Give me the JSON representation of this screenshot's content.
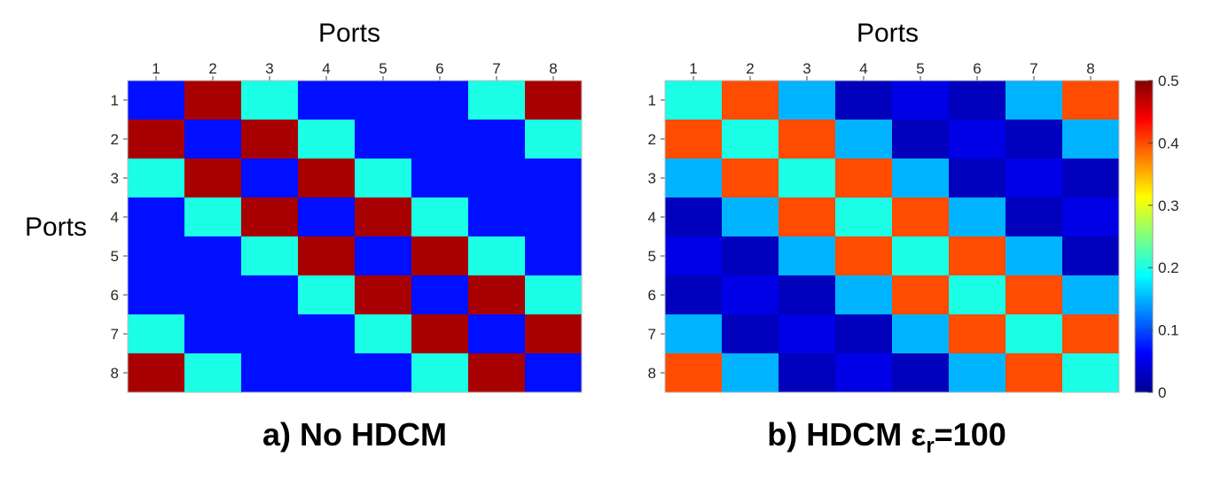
{
  "chart_data": [
    {
      "type": "heatmap",
      "caption": "a) No HDCM",
      "xlabel": "Ports",
      "ylabel": "Ports",
      "x_ticks": [
        "1",
        "2",
        "3",
        "4",
        "5",
        "6",
        "7",
        "8"
      ],
      "y_ticks": [
        "1",
        "2",
        "3",
        "4",
        "5",
        "6",
        "7",
        "8"
      ],
      "x_axis_position": "top",
      "colormap": "jet",
      "clim": [
        0,
        0.5
      ],
      "values": [
        [
          0.07,
          0.48,
          0.2,
          0.07,
          0.07,
          0.07,
          0.2,
          0.48
        ],
        [
          0.48,
          0.07,
          0.48,
          0.2,
          0.07,
          0.07,
          0.07,
          0.2
        ],
        [
          0.2,
          0.48,
          0.07,
          0.48,
          0.2,
          0.07,
          0.07,
          0.07
        ],
        [
          0.07,
          0.2,
          0.48,
          0.07,
          0.48,
          0.2,
          0.07,
          0.07
        ],
        [
          0.07,
          0.07,
          0.2,
          0.48,
          0.07,
          0.48,
          0.2,
          0.07
        ],
        [
          0.07,
          0.07,
          0.07,
          0.2,
          0.48,
          0.07,
          0.48,
          0.2
        ],
        [
          0.2,
          0.07,
          0.07,
          0.07,
          0.2,
          0.48,
          0.07,
          0.48
        ],
        [
          0.48,
          0.2,
          0.07,
          0.07,
          0.07,
          0.2,
          0.48,
          0.07
        ]
      ]
    },
    {
      "type": "heatmap",
      "caption_main": "b) HDCM ε",
      "caption_sub": "r",
      "caption_tail": "=100",
      "xlabel": "Ports",
      "x_ticks": [
        "1",
        "2",
        "3",
        "4",
        "5",
        "6",
        "7",
        "8"
      ],
      "y_ticks": [
        "1",
        "2",
        "3",
        "4",
        "5",
        "6",
        "7",
        "8"
      ],
      "x_axis_position": "top",
      "colormap": "jet",
      "clim": [
        0,
        0.5
      ],
      "colorbar_ticks": [
        "0",
        "0.1",
        "0.2",
        "0.3",
        "0.4",
        "0.5"
      ],
      "values": [
        [
          0.2,
          0.4,
          0.15,
          0.03,
          0.05,
          0.03,
          0.15,
          0.4
        ],
        [
          0.4,
          0.2,
          0.4,
          0.15,
          0.03,
          0.05,
          0.03,
          0.15
        ],
        [
          0.15,
          0.4,
          0.2,
          0.4,
          0.15,
          0.03,
          0.05,
          0.03
        ],
        [
          0.03,
          0.15,
          0.4,
          0.2,
          0.4,
          0.15,
          0.03,
          0.05
        ],
        [
          0.05,
          0.03,
          0.15,
          0.4,
          0.2,
          0.4,
          0.15,
          0.03
        ],
        [
          0.03,
          0.05,
          0.03,
          0.15,
          0.4,
          0.2,
          0.4,
          0.15
        ],
        [
          0.15,
          0.03,
          0.05,
          0.03,
          0.15,
          0.4,
          0.2,
          0.4
        ],
        [
          0.4,
          0.15,
          0.03,
          0.05,
          0.03,
          0.15,
          0.4,
          0.2
        ]
      ]
    }
  ]
}
